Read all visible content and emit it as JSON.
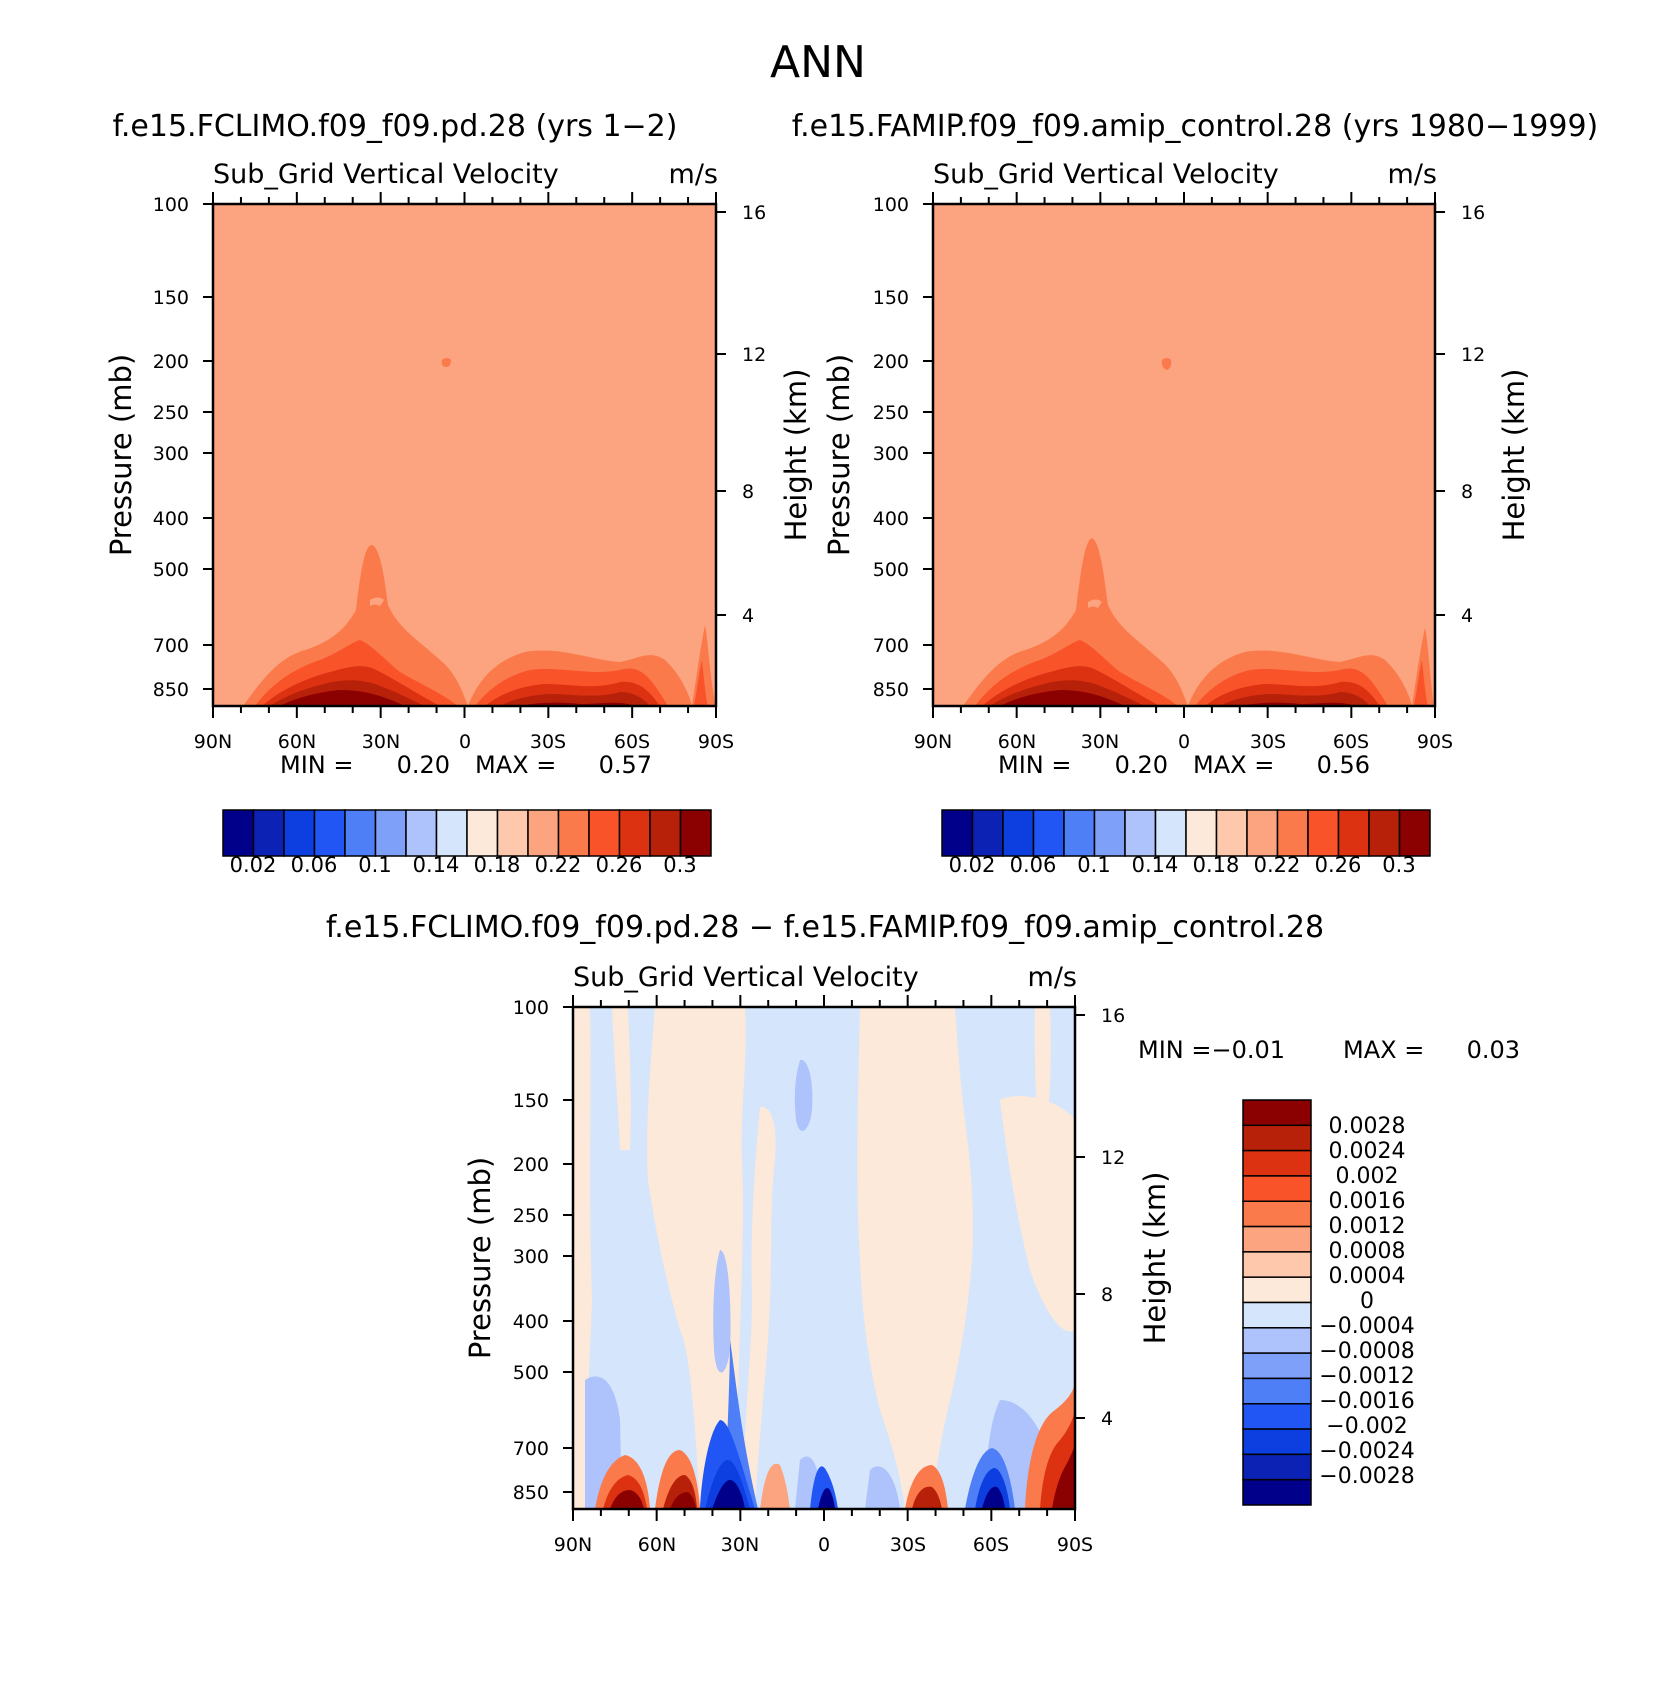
{
  "figure": {
    "season": "ANN"
  },
  "chart_data": [
    {
      "type": "contour",
      "id": "top-left",
      "title": "f.e15.FCLIMO.f09_f09.pd.28 (yrs 1-2)",
      "left_label": "Sub_Grid Vertical Velocity",
      "units": "m/s",
      "xlabel": "",
      "ylabel": "Pressure (mb)",
      "ylabel_right": "Height (km)",
      "x_ticks": [
        "90N",
        "60N",
        "30N",
        "0",
        "30S",
        "60S",
        "90S"
      ],
      "y_ticks": [
        "100",
        "150",
        "200",
        "250",
        "300",
        "400",
        "500",
        "700",
        "850"
      ],
      "y_ticks_right": [
        "16",
        "12",
        "8",
        "4"
      ],
      "min_label": "MIN =",
      "min": "0.20",
      "max_label": "MAX =",
      "max": "0.57",
      "colorbar_labels": [
        "0.02",
        "0.06",
        "0.1",
        "0.14",
        "0.18",
        "0.22",
        "0.26",
        "0.3"
      ],
      "background_level": 0.22
    },
    {
      "type": "contour",
      "id": "top-right",
      "title": "f.e15.FAMIP.f09_f09.amip_control.28 (yrs 1980-1999)",
      "left_label": "Sub_Grid Vertical Velocity",
      "units": "m/s",
      "xlabel": "",
      "ylabel": "Pressure (mb)",
      "ylabel_right": "Height (km)",
      "x_ticks": [
        "90N",
        "60N",
        "30N",
        "0",
        "30S",
        "60S",
        "90S"
      ],
      "y_ticks": [
        "100",
        "150",
        "200",
        "250",
        "300",
        "400",
        "500",
        "700",
        "850"
      ],
      "y_ticks_right": [
        "16",
        "12",
        "8",
        "4"
      ],
      "min_label": "MIN =",
      "min": "0.20",
      "max_label": "MAX =",
      "max": "0.56",
      "colorbar_labels": [
        "0.02",
        "0.06",
        "0.1",
        "0.14",
        "0.18",
        "0.22",
        "0.26",
        "0.3"
      ],
      "background_level": 0.22
    },
    {
      "type": "contour",
      "id": "difference",
      "title": "f.e15.FCLIMO.f09_f09.pd.28 - f.e15.FAMIP.f09_f09.amip_control.28",
      "left_label": "Sub_Grid Vertical Velocity",
      "units": "m/s",
      "xlabel": "",
      "ylabel": "Pressure (mb)",
      "ylabel_right": "Height (km)",
      "x_ticks": [
        "90N",
        "60N",
        "30N",
        "0",
        "30S",
        "60S",
        "90S"
      ],
      "y_ticks": [
        "100",
        "150",
        "200",
        "250",
        "300",
        "400",
        "500",
        "700",
        "850"
      ],
      "y_ticks_right": [
        "16",
        "12",
        "8",
        "4"
      ],
      "min_label": "MIN =",
      "min": "-0.01",
      "max_label": "MAX =",
      "max": "0.03",
      "colorbar_labels": [
        "0.0028",
        "0.0024",
        "0.002",
        "0.0016",
        "0.0012",
        "0.0008",
        "0.0004",
        "0",
        "-0.0004",
        "-0.0008",
        "-0.0012",
        "-0.0016",
        "-0.002",
        "-0.0024",
        "-0.0028"
      ]
    }
  ],
  "colors": {
    "top_palette": [
      "#00008b",
      "#0b22b5",
      "#0d3fe0",
      "#2156f5",
      "#4f7ff7",
      "#7fa0f9",
      "#aec3fb",
      "#d5e5fb",
      "#fde9d9",
      "#fdc8ab",
      "#fca37f",
      "#fb7a4b",
      "#f9532a",
      "#dd3212",
      "#b72109",
      "#8b0000"
    ],
    "diff_palette": [
      "#8b0000",
      "#b72109",
      "#dd3212",
      "#f9532a",
      "#fb7a4b",
      "#fca37f",
      "#fdc8ab",
      "#fde9d9",
      "#d5e5fb",
      "#aec3fb",
      "#7fa0f9",
      "#4f7ff7",
      "#2156f5",
      "#0d3fe0",
      "#0b22b5",
      "#00008b"
    ]
  }
}
